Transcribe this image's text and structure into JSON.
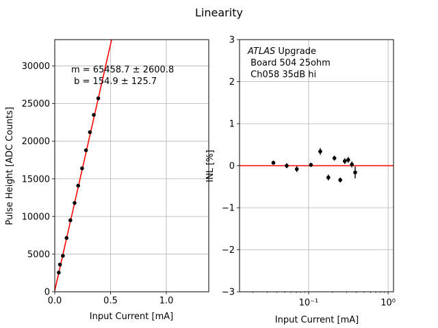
{
  "figure": {
    "suptitle": "Linearity"
  },
  "chart_data": [
    {
      "type": "scatter",
      "xlabel": "Input Current [mA]",
      "ylabel": "Pulse Height [ADC Counts]",
      "xlim": [
        0,
        1.38
      ],
      "ylim": [
        0,
        33500
      ],
      "xticks": [
        0.0,
        0.5,
        1.0
      ],
      "xtick_labels": [
        "0.0",
        "0.5",
        "1.0"
      ],
      "yticks": [
        0,
        5000,
        10000,
        15000,
        20000,
        25000,
        30000
      ],
      "ytick_labels": [
        "0",
        "5000",
        "10000",
        "15000",
        "20000",
        "25000",
        "30000"
      ],
      "grid": true,
      "points": {
        "x": [
          0.036,
          0.047,
          0.073,
          0.106,
          0.14,
          0.178,
          0.21,
          0.245,
          0.28,
          0.315,
          0.35,
          0.39
        ],
        "y": [
          2550,
          3620,
          4780,
          7150,
          9500,
          11800,
          14100,
          16400,
          18800,
          21200,
          23500,
          25700
        ]
      },
      "fit_line": {
        "slope": 65458.7,
        "intercept": 154.9,
        "color": "#ff0000"
      },
      "annotation": [
        "m = 65458.7 ± 2600.8",
        " b = 154.9 ± 125.7"
      ]
    },
    {
      "type": "scatter",
      "xlabel": "Input Current [mA]",
      "ylabel": "INL [%]",
      "xscale": "log",
      "xlim": [
        0.0135,
        1.17
      ],
      "ylim": [
        -3,
        3
      ],
      "xticks": [
        0.1,
        1
      ],
      "xtick_labels": [
        "10⁻¹",
        "10⁰"
      ],
      "yticks": [
        -3,
        -2,
        -1,
        0,
        1,
        2,
        3
      ],
      "ytick_labels": [
        "−3",
        "−2",
        "−1",
        "0",
        "1",
        "2",
        "3"
      ],
      "grid": true,
      "reference_line": {
        "y": 0,
        "color": "#ff0000"
      },
      "points": {
        "x": [
          0.036,
          0.053,
          0.071,
          0.107,
          0.14,
          0.177,
          0.211,
          0.25,
          0.285,
          0.315,
          0.35,
          0.385
        ],
        "y": [
          0.07,
          0.0,
          -0.08,
          0.02,
          0.34,
          -0.28,
          0.18,
          -0.34,
          0.11,
          0.14,
          0.03,
          -0.16
        ],
        "yerr": [
          0.05,
          0.06,
          0.07,
          0.05,
          0.08,
          0.07,
          0.06,
          0.06,
          0.07,
          0.07,
          0.07,
          0.14
        ]
      },
      "annotation": {
        "italic": "ATLAS",
        "lines": [
          " Upgrade",
          " Board 504 25ohm",
          " Ch058 35dB hi"
        ]
      }
    }
  ]
}
